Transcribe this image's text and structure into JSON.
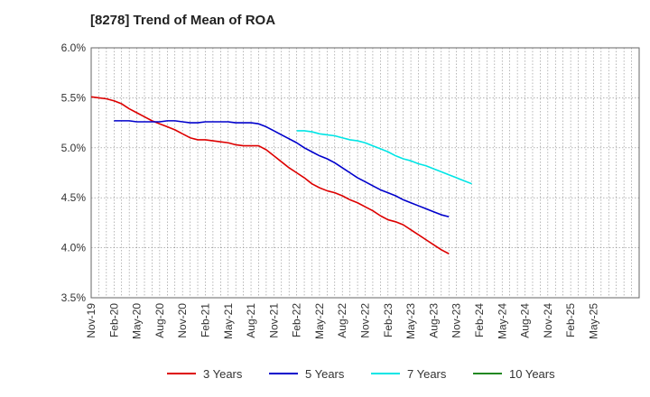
{
  "chart_data": {
    "type": "line",
    "title": "[8278]  Trend of Mean of ROA",
    "xlabel": "",
    "ylabel": "",
    "ylim": [
      3.5,
      6.0
    ],
    "yticks": [
      3.5,
      4.0,
      4.5,
      5.0,
      5.5,
      6.0
    ],
    "ytick_labels": [
      "3.5%",
      "4.0%",
      "4.5%",
      "5.0%",
      "5.5%",
      "6.0%"
    ],
    "x_range": [
      "Nov-19",
      "Nov-25"
    ],
    "xtick_labels": [
      "Nov-19",
      "Feb-20",
      "May-20",
      "Aug-20",
      "Nov-20",
      "Feb-21",
      "May-21",
      "Aug-21",
      "Nov-21",
      "Feb-22",
      "May-22",
      "Aug-22",
      "Nov-22",
      "Feb-23",
      "May-23",
      "Aug-23",
      "Nov-23",
      "Feb-24",
      "May-24",
      "Aug-24",
      "Nov-24",
      "Feb-25",
      "May-25"
    ],
    "grid": "dotted",
    "legend_position": "bottom",
    "series": [
      {
        "name": "3 Years",
        "color": "#dd0000",
        "start": "Nov-19",
        "values": [
          5.51,
          5.5,
          5.49,
          5.47,
          5.44,
          5.39,
          5.35,
          5.31,
          5.27,
          5.24,
          5.21,
          5.18,
          5.14,
          5.1,
          5.08,
          5.08,
          5.07,
          5.06,
          5.05,
          5.03,
          5.02,
          5.02,
          5.02,
          4.98,
          4.92,
          4.86,
          4.8,
          4.75,
          4.7,
          4.64,
          4.6,
          4.57,
          4.55,
          4.52,
          4.48,
          4.45,
          4.41,
          4.37,
          4.32,
          4.28,
          4.26,
          4.23,
          4.18,
          4.13,
          4.08,
          4.03,
          3.98,
          3.94
        ]
      },
      {
        "name": "5 Years",
        "color": "#0000cc",
        "start": "Feb-20",
        "values": [
          5.27,
          5.27,
          5.27,
          5.26,
          5.26,
          5.26,
          5.26,
          5.27,
          5.27,
          5.26,
          5.25,
          5.25,
          5.26,
          5.26,
          5.26,
          5.26,
          5.25,
          5.25,
          5.25,
          5.24,
          5.21,
          5.17,
          5.13,
          5.09,
          5.05,
          5.0,
          4.96,
          4.92,
          4.89,
          4.85,
          4.8,
          4.75,
          4.7,
          4.66,
          4.62,
          4.58,
          4.55,
          4.52,
          4.48,
          4.45,
          4.42,
          4.39,
          4.36,
          4.33,
          4.31
        ]
      },
      {
        "name": "7 Years",
        "color": "#00e5e5",
        "start": "Feb-22",
        "values": [
          5.17,
          5.17,
          5.16,
          5.14,
          5.13,
          5.12,
          5.1,
          5.08,
          5.07,
          5.05,
          5.02,
          4.99,
          4.96,
          4.92,
          4.89,
          4.87,
          4.84,
          4.82,
          4.79,
          4.76,
          4.73,
          4.7,
          4.67,
          4.64
        ]
      },
      {
        "name": "10 Years",
        "color": "#228822",
        "start": "",
        "values": []
      }
    ]
  }
}
